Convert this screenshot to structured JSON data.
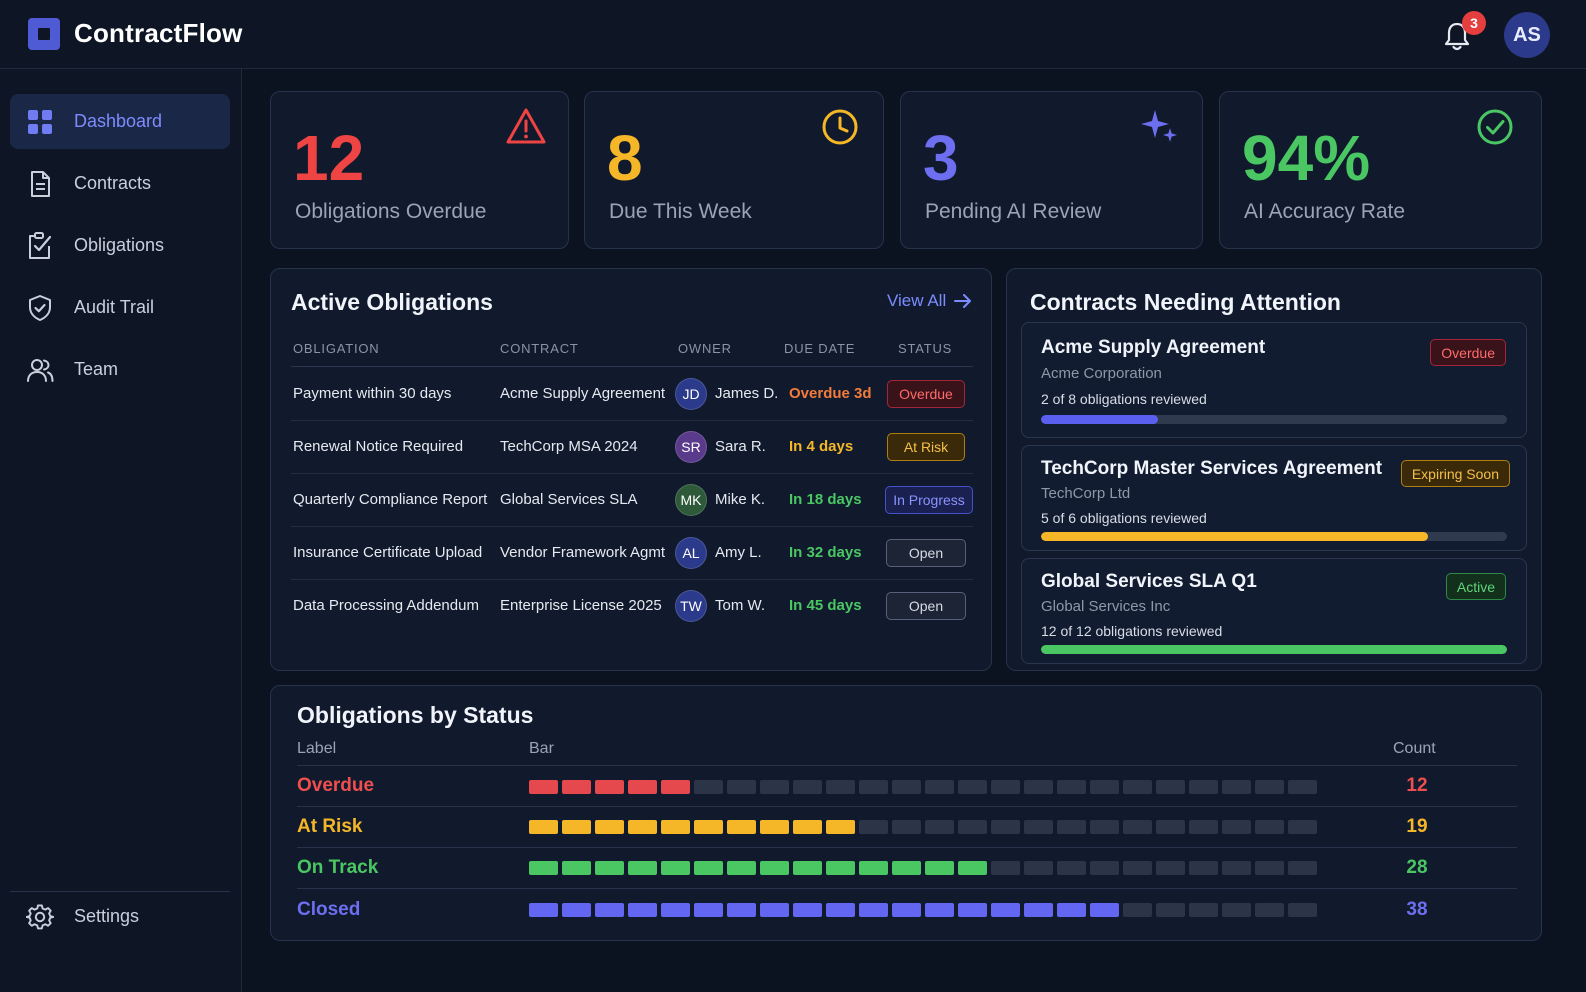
{
  "app": {
    "title": "ContractFlow",
    "user_initials": "AS",
    "notification_count": "3"
  },
  "sidebar": {
    "items": [
      {
        "label": "Dashboard",
        "icon": "grid-icon",
        "active": true
      },
      {
        "label": "Contracts",
        "icon": "document-icon",
        "active": false
      },
      {
        "label": "Obligations",
        "icon": "clipboard-check-icon",
        "active": false
      },
      {
        "label": "Audit Trail",
        "icon": "shield-check-icon",
        "active": false
      },
      {
        "label": "Team",
        "icon": "users-icon",
        "active": false
      }
    ],
    "settings_label": "Settings"
  },
  "kpis": [
    {
      "value": "12",
      "label": "Obligations Overdue",
      "color": "#ef4444",
      "icon": "warning-icon"
    },
    {
      "value": "8",
      "label": "Due This Week",
      "color": "#f5b727",
      "icon": "clock-icon"
    },
    {
      "value": "3",
      "label": "Pending AI Review",
      "color": "#6d6ff0",
      "icon": "sparkle-icon"
    },
    {
      "value": "94%",
      "label": "AI Accuracy Rate",
      "color": "#4ac763",
      "icon": "check-circle-icon"
    }
  ],
  "obligations": {
    "title": "Active Obligations",
    "view_all": "View All",
    "columns": [
      "OBLIGATION",
      "CONTRACT",
      "OWNER",
      "DUE DATE",
      "STATUS"
    ],
    "rows": [
      {
        "obligation": "Payment within 30 days",
        "contract": "Acme Supply Agreement",
        "initials": "JD",
        "owner": "James D.",
        "due": "Overdue 3d",
        "due_color": "#f47b3a",
        "status": "Overdue",
        "status_kind": "overdue",
        "avatar_color": "#2b3a8a"
      },
      {
        "obligation": "Renewal Notice Required",
        "contract": "TechCorp MSA 2024",
        "initials": "SR",
        "owner": "Sara R.",
        "due": "In 4 days",
        "due_color": "#f5b727",
        "status": "At Risk",
        "status_kind": "risk",
        "avatar_color": "#5a3a8a"
      },
      {
        "obligation": "Quarterly Compliance Report",
        "contract": "Global Services SLA",
        "initials": "MK",
        "owner": "Mike K.",
        "due": "In 18 days",
        "due_color": "#4ac763",
        "status": "In Progress",
        "status_kind": "progress",
        "avatar_color": "#2f5a3a"
      },
      {
        "obligation": "Insurance Certificate Upload",
        "contract": "Vendor Framework Agmt",
        "initials": "AL",
        "owner": "Amy L.",
        "due": "In 32 days",
        "due_color": "#4ac763",
        "status": "Open",
        "status_kind": "open",
        "avatar_color": "#2b3a8a"
      },
      {
        "obligation": "Data Processing Addendum",
        "contract": "Enterprise License 2025",
        "initials": "TW",
        "owner": "Tom W.",
        "due": "In 45 days",
        "due_color": "#4ac763",
        "status": "Open",
        "status_kind": "open",
        "avatar_color": "#2b3a8a"
      }
    ]
  },
  "attention": {
    "title": "Contracts Needing Attention",
    "items": [
      {
        "name": "Acme Supply Agreement",
        "org": "Acme Corporation",
        "progress_text": "2 of 8 obligations reviewed",
        "progress": 0.25,
        "bar_color": "#5b5ff0",
        "badge": "Overdue",
        "badge_kind": "overdue"
      },
      {
        "name": "TechCorp Master Services Agreement",
        "org": "TechCorp Ltd",
        "progress_text": "5 of 6 obligations reviewed",
        "progress": 0.83,
        "bar_color": "#f5b727",
        "badge": "Expiring Soon",
        "badge_kind": "risk"
      },
      {
        "name": "Global Services SLA Q1",
        "org": "Global Services Inc",
        "progress_text": "12 of 12 obligations reviewed",
        "progress": 1.0,
        "bar_color": "#4ac763",
        "badge": "Active",
        "badge_kind": "active"
      }
    ]
  },
  "status_chart": {
    "title": "Obligations by Status",
    "headers": {
      "label": "Label",
      "bar": "Bar",
      "count": "Count"
    },
    "segments_total": 24,
    "rows": [
      {
        "label": "Overdue",
        "count": "12",
        "filled": 5,
        "color": "#e5484d"
      },
      {
        "label": "At Risk",
        "count": "19",
        "filled": 10,
        "color": "#f5b727"
      },
      {
        "label": "On Track",
        "count": "28",
        "filled": 14,
        "color": "#4ac763"
      },
      {
        "label": "Closed",
        "count": "38",
        "filled": 18,
        "color": "#6366f1"
      }
    ]
  }
}
